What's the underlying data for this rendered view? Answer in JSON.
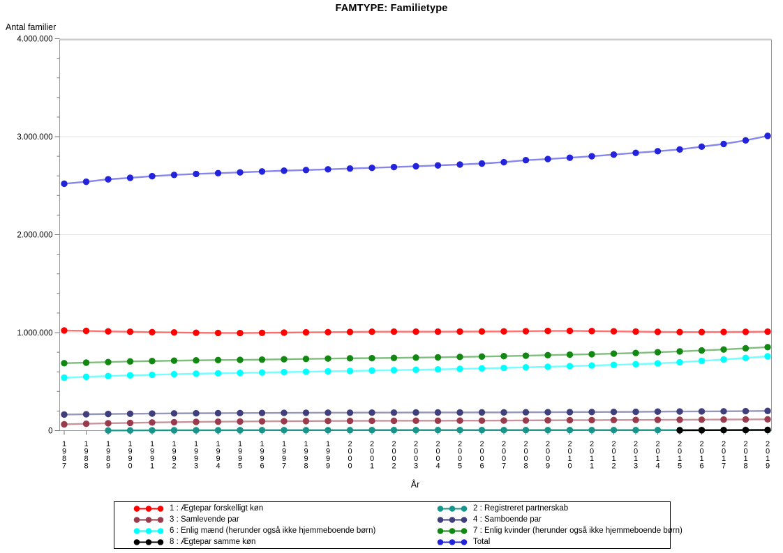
{
  "page_title": "FAMTYPE: Familietype",
  "chart_data": {
    "type": "line",
    "title": "FAMTYPE: Familietype",
    "xlabel": "År",
    "ylabel": "Antal familier",
    "x_years": [
      1987,
      1988,
      1989,
      1990,
      1991,
      1992,
      1993,
      1994,
      1995,
      1996,
      1997,
      1998,
      1999,
      2000,
      2001,
      2002,
      2003,
      2004,
      2005,
      2006,
      2007,
      2008,
      2009,
      2010,
      2011,
      2012,
      2013,
      2014,
      2015,
      2016,
      2017,
      2018,
      2019
    ],
    "ylim": [
      0,
      4000000
    ],
    "ytick_interval": 1000000,
    "yminor_interval": 200000,
    "ytick_labels": [
      "0",
      "1.000.000",
      "2.000.000",
      "3.000.000",
      "4.000.000"
    ],
    "grid": "faint horizontal gridlines at major y ticks",
    "legend_position": "bottom-center, boxed, two columns",
    "series": [
      {
        "id": "total",
        "label": "Total",
        "color": "#2323DC",
        "start_year": 1987,
        "values": [
          2520000,
          2540000,
          2565000,
          2580000,
          2597000,
          2610000,
          2620000,
          2628000,
          2636000,
          2645000,
          2653000,
          2660000,
          2667000,
          2675000,
          2682000,
          2690000,
          2698000,
          2707000,
          2716000,
          2726000,
          2740000,
          2760000,
          2772000,
          2785000,
          2800000,
          2817000,
          2835000,
          2852000,
          2870000,
          2898000,
          2926000,
          2962000,
          3008000
        ]
      },
      {
        "id": "s1",
        "label": "1 : Ægtepar forskelligt køn",
        "color": "#FF0000",
        "start_year": 1987,
        "values": [
          1022000,
          1018000,
          1013000,
          1009000,
          1005000,
          1002000,
          999000,
          997000,
          996000,
          998000,
          1000000,
          1003000,
          1005000,
          1007000,
          1009000,
          1010000,
          1010000,
          1010000,
          1011000,
          1012000,
          1013000,
          1015000,
          1017000,
          1018000,
          1016000,
          1014000,
          1011000,
          1008000,
          1006000,
          1006000,
          1007000,
          1008000,
          1010000
        ]
      },
      {
        "id": "s7",
        "label": "7 : Enlig kvinder (herunder også ikke hjemmeboende børn)",
        "color": "#128812",
        "start_year": 1987,
        "values": [
          688000,
          694000,
          700000,
          706000,
          710000,
          714000,
          717000,
          720000,
          722000,
          725000,
          728000,
          732000,
          735000,
          738000,
          740000,
          742000,
          745000,
          748000,
          752000,
          756000,
          760000,
          765000,
          770000,
          775000,
          780000,
          786000,
          792000,
          800000,
          808000,
          818000,
          828000,
          840000,
          852000
        ]
      },
      {
        "id": "s6",
        "label": "6 : Enlig mænd (herunder også ikke hjemmeboende børn)",
        "color": "#00FFFF",
        "start_year": 1987,
        "values": [
          540000,
          549000,
          557000,
          564000,
          570000,
          576000,
          581000,
          585000,
          589000,
          593000,
          597000,
          601000,
          605000,
          609000,
          613000,
          617000,
          621000,
          625000,
          630000,
          635000,
          640000,
          646000,
          652000,
          658000,
          664000,
          671000,
          678000,
          686000,
          698000,
          712000,
          726000,
          742000,
          758000
        ]
      },
      {
        "id": "s4",
        "label": "4 : Samboende par",
        "color": "#3F3F7E",
        "start_year": 1987,
        "values": [
          164000,
          167000,
          170000,
          172000,
          174000,
          176000,
          177000,
          178000,
          179000,
          180000,
          181000,
          182000,
          183000,
          183000,
          184000,
          184000,
          185000,
          185000,
          185000,
          186000,
          186000,
          187000,
          188000,
          189000,
          190000,
          191000,
          192000,
          194000,
          195000,
          196000,
          197000,
          199000,
          201000
        ]
      },
      {
        "id": "s3",
        "label": "3 : Samlevende par",
        "color": "#993A4D",
        "start_year": 1987,
        "values": [
          64000,
          70000,
          75000,
          79000,
          83000,
          86000,
          89000,
          91000,
          93000,
          95000,
          96000,
          97000,
          98000,
          99000,
          100000,
          100000,
          101000,
          101000,
          102000,
          102000,
          103000,
          104000,
          105000,
          106000,
          107000,
          108000,
          109000,
          110000,
          111000,
          112000,
          113000,
          114000,
          115000
        ]
      },
      {
        "id": "s2",
        "label": "2 : Registreret partnerskab",
        "color": "#17958A",
        "start_year": 1989,
        "values": [
          1500,
          2500,
          3200,
          3600,
          4000,
          4200,
          4400,
          4600,
          4800,
          5000,
          5100,
          5200,
          5300,
          5400,
          5500,
          5600,
          5600,
          5700,
          5700,
          5800,
          5800,
          5800,
          5700,
          5700,
          5600,
          5500,
          5400,
          5300,
          5200,
          5100,
          5000
        ]
      },
      {
        "id": "s8",
        "label": "8 : Ægtepar samme køn",
        "color": "#000000",
        "start_year": 2015,
        "values": [
          3500,
          4500,
          5500,
          6500,
          7500
        ]
      }
    ],
    "legend_columns": {
      "left": [
        "s1",
        "s3",
        "s6",
        "s8"
      ],
      "right": [
        "s2",
        "s4",
        "s7",
        "total"
      ]
    }
  }
}
